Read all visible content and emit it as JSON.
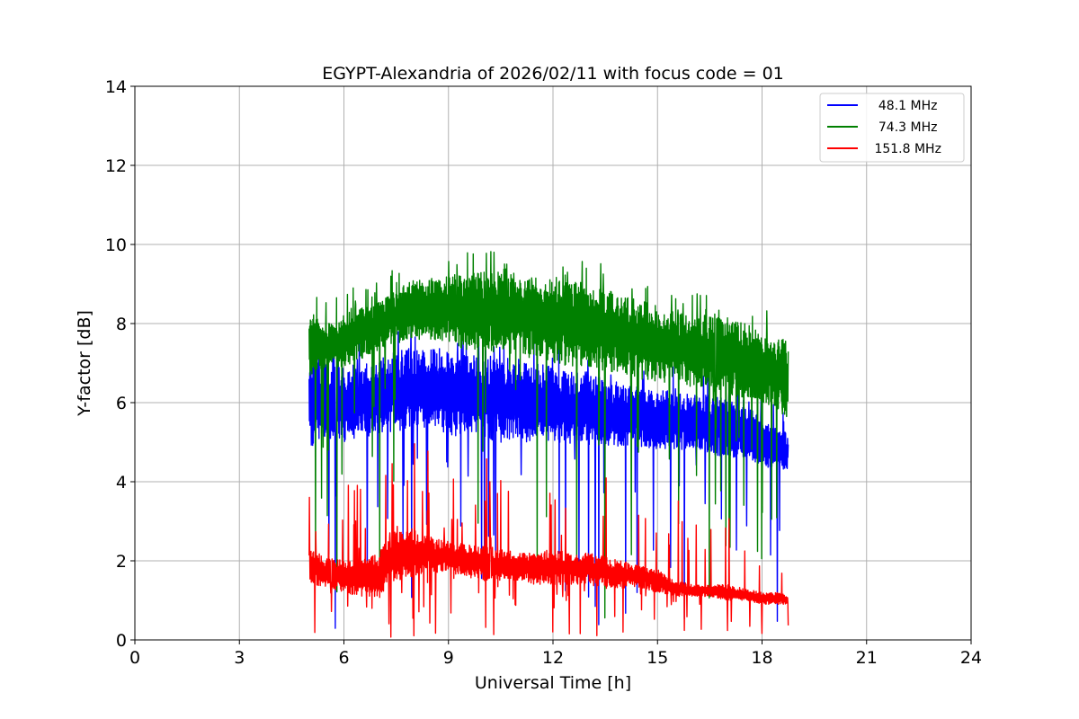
{
  "chart_data": {
    "type": "line",
    "title": "EGYPT-Alexandria of 2026/02/11 with focus code = 01",
    "xlabel": "Universal Time [h]",
    "ylabel": "Y-factor [dB]",
    "xlim": [
      0,
      24
    ],
    "ylim": [
      0,
      14
    ],
    "xticks": [
      0,
      3,
      6,
      9,
      12,
      15,
      18,
      21,
      24
    ],
    "yticks": [
      0,
      2,
      4,
      6,
      8,
      10,
      12,
      14
    ],
    "grid": true,
    "legend_position": "top-right",
    "series": [
      {
        "name": "  48.1 MHz",
        "color": "#0000ff",
        "x": [
          5.0,
          5.5,
          6.0,
          6.5,
          7.0,
          7.5,
          8.0,
          8.5,
          9.0,
          9.5,
          10.0,
          10.5,
          11.0,
          11.5,
          12.0,
          12.5,
          13.0,
          13.5,
          14.0,
          14.5,
          15.0,
          15.5,
          16.0,
          16.5,
          17.0,
          17.5,
          18.0,
          18.5,
          18.75
        ],
        "low": [
          4.8,
          5.0,
          5.0,
          5.1,
          5.2,
          5.3,
          5.3,
          5.4,
          5.2,
          5.1,
          5.1,
          5.0,
          5.0,
          5.0,
          5.0,
          4.9,
          4.9,
          4.9,
          4.9,
          4.9,
          4.8,
          4.8,
          4.8,
          4.7,
          4.6,
          4.6,
          4.4,
          4.3,
          4.3
        ],
        "high": [
          7.2,
          7.0,
          6.9,
          7.0,
          7.1,
          7.3,
          7.4,
          7.4,
          7.3,
          7.3,
          7.2,
          7.2,
          7.1,
          7.0,
          6.9,
          6.8,
          6.7,
          6.6,
          6.5,
          6.4,
          6.3,
          6.3,
          6.2,
          6.2,
          6.1,
          6.0,
          5.6,
          5.3,
          5.2
        ]
      },
      {
        "name": "  74.3 MHz",
        "color": "#008000",
        "x": [
          5.0,
          5.5,
          6.0,
          6.5,
          7.0,
          7.5,
          8.0,
          8.5,
          9.0,
          9.5,
          10.0,
          10.5,
          11.0,
          11.5,
          12.0,
          12.5,
          13.0,
          13.5,
          14.0,
          14.5,
          15.0,
          15.5,
          16.0,
          16.5,
          17.0,
          17.5,
          18.0,
          18.5,
          18.75
        ],
        "low": [
          6.6,
          6.9,
          6.9,
          7.1,
          7.3,
          7.5,
          7.6,
          7.6,
          7.5,
          7.3,
          7.3,
          7.2,
          7.2,
          7.1,
          7.0,
          6.9,
          6.9,
          6.8,
          6.7,
          6.6,
          6.5,
          6.5,
          6.4,
          6.3,
          6.2,
          6.1,
          6.0,
          5.8,
          5.6
        ],
        "high": [
          8.3,
          8.0,
          8.2,
          8.5,
          8.6,
          8.9,
          9.1,
          9.1,
          9.2,
          9.3,
          9.3,
          9.3,
          9.2,
          9.1,
          9.2,
          9.1,
          9.0,
          8.9,
          8.7,
          8.6,
          8.4,
          8.3,
          8.2,
          8.3,
          8.2,
          8.0,
          7.8,
          7.7,
          7.6
        ]
      },
      {
        "name": " 151.8 MHz",
        "color": "#ff0000",
        "x": [
          5.0,
          5.5,
          6.0,
          6.5,
          7.0,
          7.5,
          8.0,
          8.5,
          9.0,
          9.5,
          10.0,
          10.5,
          11.0,
          11.5,
          12.0,
          12.5,
          13.0,
          13.5,
          14.0,
          14.5,
          15.0,
          15.5,
          16.0,
          16.5,
          17.0,
          17.5,
          18.0,
          18.5,
          18.75
        ],
        "low": [
          1.4,
          1.3,
          1.2,
          1.1,
          1.1,
          1.5,
          1.6,
          1.7,
          1.7,
          1.6,
          1.5,
          1.5,
          1.5,
          1.4,
          1.4,
          1.4,
          1.4,
          1.3,
          1.3,
          1.3,
          1.2,
          1.1,
          1.1,
          1.1,
          1.0,
          1.0,
          0.9,
          0.9,
          0.9
        ],
        "high": [
          2.3,
          2.1,
          2.0,
          2.0,
          2.2,
          2.9,
          2.8,
          2.6,
          2.5,
          2.4,
          2.4,
          2.3,
          2.2,
          2.2,
          2.3,
          2.2,
          2.2,
          2.1,
          2.0,
          1.9,
          1.8,
          1.5,
          1.4,
          1.4,
          1.4,
          1.3,
          1.2,
          1.2,
          1.1
        ]
      }
    ]
  }
}
